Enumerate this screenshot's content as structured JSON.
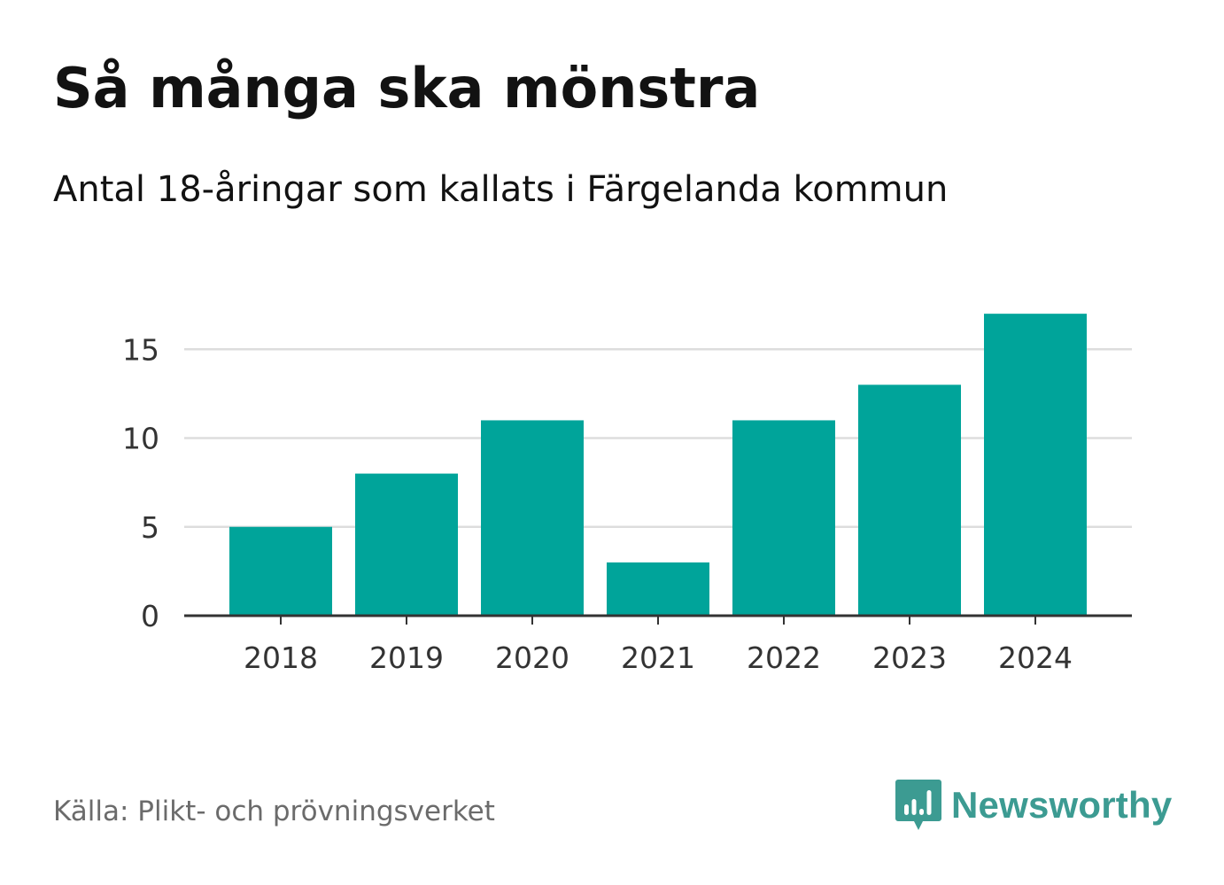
{
  "title": "Så många ska mönstra",
  "subtitle": "Antal 18-åringar som kallats i Färgelanda kommun",
  "source": "Källa: Plikt- och prövningsverket",
  "brand": {
    "name": "Newsworthy",
    "icon": "newsworthy-logo-icon"
  },
  "colors": {
    "bar": "#00a49a",
    "grid": "#dddddd",
    "axis": "#333333",
    "brand": "#3c9b92"
  },
  "chart_data": {
    "type": "bar",
    "title": "Så många ska mönstra",
    "subtitle": "Antal 18-åringar som kallats i Färgelanda kommun",
    "categories": [
      "2018",
      "2019",
      "2020",
      "2021",
      "2022",
      "2023",
      "2024"
    ],
    "values": [
      5,
      8,
      11,
      3,
      11,
      13,
      17
    ],
    "xlabel": "",
    "ylabel": "",
    "ylim": [
      0,
      17
    ],
    "yticks": [
      0,
      5,
      10,
      15
    ],
    "grid": true,
    "legend": "none"
  }
}
